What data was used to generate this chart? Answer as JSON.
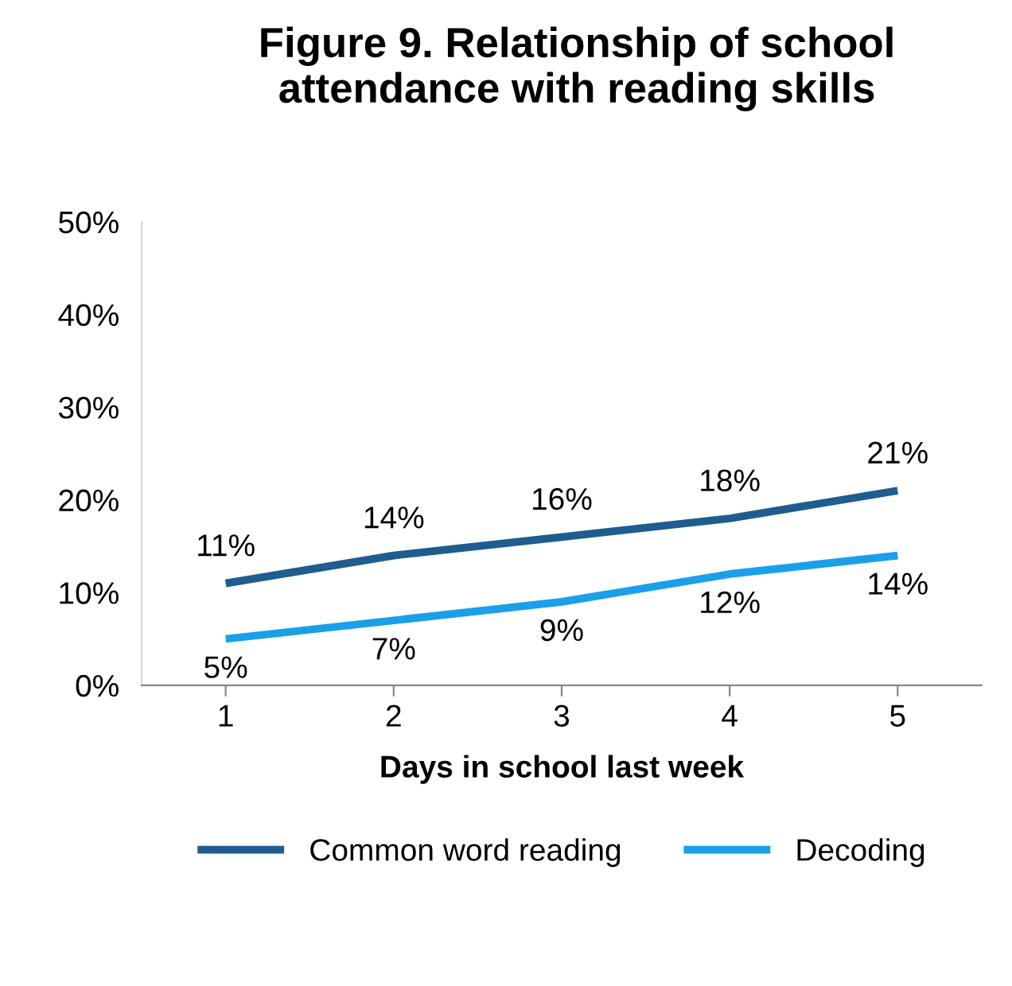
{
  "chart_data": {
    "type": "line",
    "title": "Figure 9. Relationship of school attendance with reading skills",
    "xlabel": "Days in school last week",
    "categories": [
      "1",
      "2",
      "3",
      "4",
      "5"
    ],
    "series": [
      {
        "name": "Common word reading",
        "color": "#1f5d8f",
        "values": [
          11,
          14,
          16,
          18,
          21
        ],
        "value_labels": [
          "11%",
          "14%",
          "16%",
          "18%",
          "21%"
        ]
      },
      {
        "name": "Decoding",
        "color": "#1aa0e8",
        "values": [
          5,
          7,
          9,
          12,
          14
        ],
        "value_labels": [
          "5%",
          "7%",
          "9%",
          "12%",
          "14%"
        ]
      }
    ],
    "ylim": [
      0,
      50
    ],
    "yticks": [
      {
        "value": 0,
        "label": "0%"
      },
      {
        "value": 10,
        "label": "10%"
      },
      {
        "value": 20,
        "label": "20%"
      },
      {
        "value": 30,
        "label": "30%"
      },
      {
        "value": 40,
        "label": "40%"
      },
      {
        "value": 50,
        "label": "50%"
      }
    ],
    "grid": false,
    "legend": "bottom",
    "marker": "none",
    "line_style": "solid"
  }
}
